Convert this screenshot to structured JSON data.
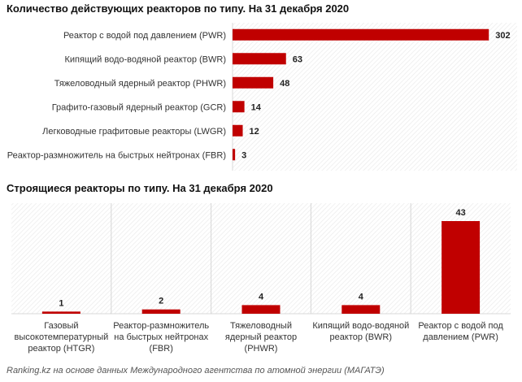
{
  "chart_data": [
    {
      "type": "bar",
      "orientation": "horizontal",
      "title": "Количество действующих реакторов по типу. На 31 декабря 2020",
      "categories": [
        "Реактор с водой под давлением (PWR)",
        "Кипящий водо-водяной реактор (BWR)",
        "Тяжеловодный ядерный реактор (PHWR)",
        "Графито-газовый ядерный реактор (GCR)",
        "Легководные графитовые реакторы (LWGR)",
        "Реактор-размножитель на быстрых нейтронах (FBR)"
      ],
      "values": [
        302,
        63,
        48,
        14,
        12,
        3
      ],
      "xlim": [
        0,
        320
      ],
      "bar_color": "#c00000",
      "background": "hatched"
    },
    {
      "type": "bar",
      "orientation": "vertical",
      "title": "Строящиеся реакторы по типу. На 31 декабря 2020",
      "categories": [
        "Газовый высокотемпературный реактор (HTGR)",
        "Реактор-размножитель на быстрых нейтронах (FBR)",
        "Тяжеловодный ядерный реактор (PHWR)",
        "Кипящий водо-водяной реактор (BWR)",
        "Реактор с водой под давлением (PWR)"
      ],
      "category_lines": [
        [
          "Газовый",
          "высокотемпературный",
          "реактор (HTGR)"
        ],
        [
          "Реактор-размножитель",
          "на быстрых нейтронах",
          "(FBR)"
        ],
        [
          "Тяжеловодный",
          "ядерный реактор",
          "(PHWR)"
        ],
        [
          "Кипящий водо-водяной",
          "реактор (BWR)"
        ],
        [
          "Реактор с водой под",
          "давлением (PWR)"
        ]
      ],
      "values": [
        1,
        2,
        4,
        4,
        43
      ],
      "ylim": [
        0,
        50
      ],
      "bar_color": "#c00000",
      "background": "hatched"
    }
  ],
  "source": "Ranking.kz на основе данных Международного агентства по атомной энергии (МАГАТЭ)"
}
